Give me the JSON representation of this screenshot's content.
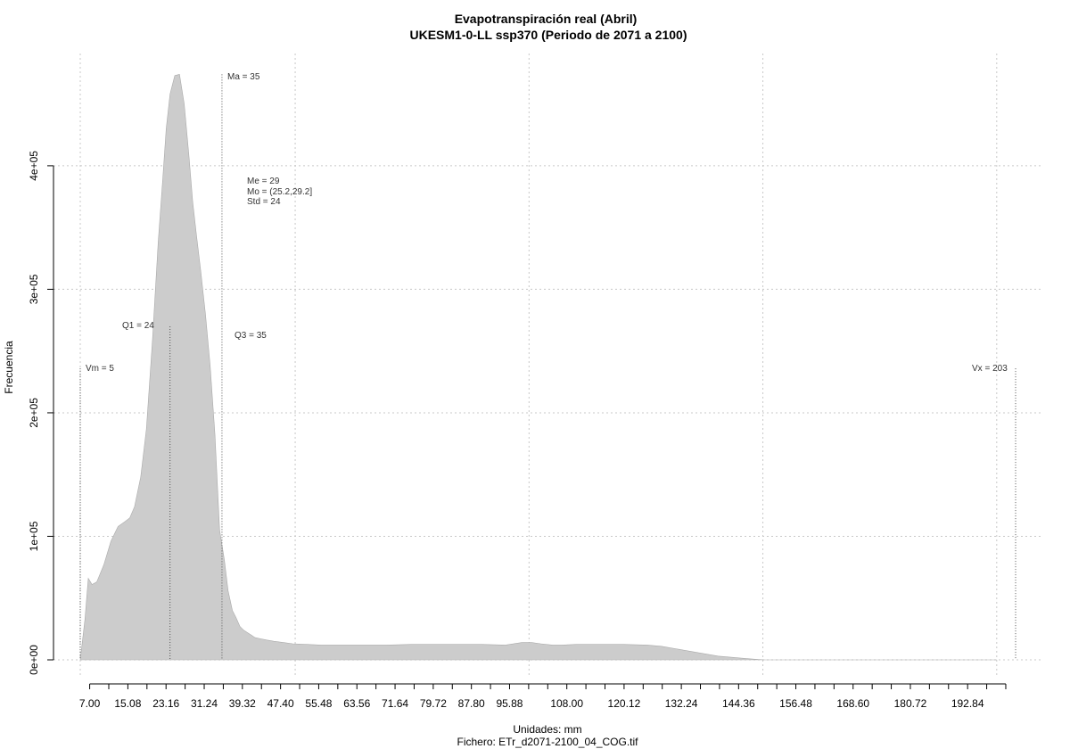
{
  "chart_data": {
    "type": "area",
    "title": "Evapotranspiración real (Abril)",
    "subtitle": "UKESM1-0-LL ssp370 (Periodo de 2071 a 2100)",
    "xlabel": "Unidades: mm",
    "ylabel": "Frecuencia",
    "footer": "Fichero: ETr_d2071-2100_04_COG.tif",
    "xlim": [
      5,
      203
    ],
    "ylim": [
      0,
      475000
    ],
    "x_ticks": [
      7.0,
      11.04,
      15.08,
      19.12,
      23.16,
      27.2,
      31.24,
      35.28,
      39.32,
      43.36,
      47.4,
      51.44,
      55.48,
      59.52,
      63.56,
      67.6,
      71.64,
      75.68,
      79.72,
      83.76,
      87.8,
      91.84,
      95.88,
      99.92,
      103.96,
      108.0,
      112.04,
      116.08,
      120.12,
      124.16,
      128.2,
      132.24,
      136.28,
      140.32,
      144.36,
      148.4,
      152.44,
      156.48,
      160.52,
      164.56,
      168.6,
      172.64,
      176.68,
      180.72,
      184.76,
      188.8,
      192.84,
      196.88,
      200.92
    ],
    "x_tick_labels": [
      "7.00",
      "15.08",
      "23.16",
      "31.24",
      "39.32",
      "47.40",
      "55.48",
      "63.56",
      "71.64",
      "79.72",
      "87.80",
      "95.88",
      "108.00",
      "120.12",
      "132.24",
      "144.36",
      "156.48",
      "168.60",
      "180.72",
      "192.84"
    ],
    "x_tick_label_values": [
      7.0,
      15.08,
      23.16,
      31.24,
      39.32,
      47.4,
      55.48,
      63.56,
      71.64,
      79.72,
      87.8,
      95.88,
      108.0,
      120.12,
      132.24,
      144.36,
      156.48,
      168.6,
      180.72,
      192.84
    ],
    "y_ticks": [
      0,
      100000,
      200000,
      300000,
      400000
    ],
    "y_tick_labels": [
      "0e+00",
      "1e+05",
      "2e+05",
      "3e+05",
      "4e+05"
    ],
    "grid": true,
    "x_grid": [
      5,
      50.5,
      100,
      149.5,
      199
    ],
    "x": [
      5,
      6,
      6.7,
      7.5,
      8.5,
      10,
      11.5,
      13,
      14.5,
      15.5,
      16.5,
      17.8,
      19,
      20.3,
      21.5,
      22.5,
      23.2,
      24,
      25,
      26,
      27,
      28,
      28.8,
      29.6,
      30.5,
      31.5,
      32.5,
      33.5,
      34.5,
      35.5,
      36.3,
      37.2,
      38,
      38.8,
      39.6,
      40.4,
      41.2,
      42,
      43.3,
      44.5,
      46,
      48,
      50,
      53,
      56,
      60,
      65,
      70,
      75,
      80,
      85,
      90,
      95,
      98.5,
      100.5,
      102.5,
      105,
      107,
      110,
      115,
      120,
      125,
      128,
      131,
      134,
      137,
      140,
      143,
      146,
      148.5,
      150,
      160,
      170,
      180,
      190,
      199
    ],
    "y": [
      0,
      33000,
      66000,
      61000,
      63000,
      77000,
      96000,
      108000,
      112000,
      115000,
      124000,
      148000,
      187000,
      260000,
      338000,
      391000,
      430000,
      458000,
      473000,
      474000,
      450000,
      408000,
      371000,
      344000,
      315000,
      280000,
      238000,
      183000,
      105000,
      81000,
      56000,
      40000,
      34000,
      27000,
      24000,
      22000,
      20000,
      18000,
      17000,
      16000,
      15000,
      14000,
      13000,
      12500,
      12000,
      12000,
      12000,
      12000,
      12500,
      12500,
      12500,
      12500,
      12000,
      14000,
      14000,
      13000,
      12000,
      12000,
      12500,
      12500,
      12500,
      12000,
      11000,
      9000,
      7000,
      5000,
      3000,
      2000,
      1000,
      300,
      0,
      0,
      0,
      0,
      0,
      0
    ],
    "fill_color": "#cccccc",
    "markers": [
      {
        "name": "q1",
        "label": "Q1 = 24",
        "x": 24,
        "y_top": 270000,
        "label_side": "left"
      },
      {
        "name": "ma",
        "label": "Ma = 35",
        "x": 35,
        "y_top": 474000,
        "label_side": "right"
      },
      {
        "name": "vm",
        "label": "Vm = 5",
        "x": 5,
        "y_top": 236000,
        "label_side": "right"
      },
      {
        "name": "vx",
        "label": "Vx = 203",
        "x": 203,
        "y_top": 236000,
        "label_side": "left"
      },
      {
        "name": "q3",
        "label": "Q3 = 35",
        "x": 35,
        "y_top": null,
        "label_side": "right"
      }
    ],
    "stats_block": [
      "Me = 29",
      "Mo = (25.2,29.2]",
      "Std = 24"
    ]
  }
}
